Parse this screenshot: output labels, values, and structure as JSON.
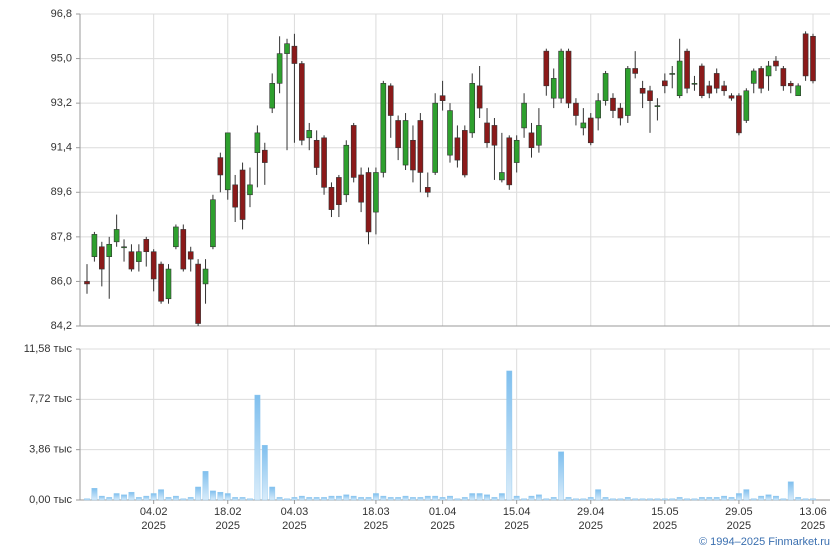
{
  "chart_data": [
    {
      "type": "candlestick",
      "up_color": "#2ea02e",
      "down_color": "#8b1a1a",
      "grid": true,
      "ylim": [
        84.2,
        96.8
      ],
      "yticks": [
        {
          "value": 84.2,
          "label": "84,2"
        },
        {
          "value": 86.0,
          "label": "86,0"
        },
        {
          "value": 87.8,
          "label": "87,8"
        },
        {
          "value": 89.6,
          "label": "89,6"
        },
        {
          "value": 91.4,
          "label": "91,4"
        },
        {
          "value": 93.2,
          "label": "93,2"
        },
        {
          "value": 95.0,
          "label": "95,0"
        },
        {
          "value": 96.8,
          "label": "96,8"
        }
      ],
      "open": [
        86.0,
        87.0,
        87.4,
        87.0,
        87.6,
        87.4,
        87.2,
        86.8,
        87.7,
        87.2,
        86.7,
        85.3,
        87.4,
        88.1,
        87.2,
        86.7,
        85.9,
        87.4,
        91.0,
        89.7,
        89.9,
        90.5,
        89.5,
        91.2,
        91.3,
        93.0,
        94.0,
        95.2,
        95.5,
        94.8,
        91.8,
        91.7,
        91.8,
        89.8,
        90.2,
        89.5,
        92.3,
        90.3,
        90.4,
        88.8,
        90.4,
        93.9,
        92.5,
        90.7,
        91.7,
        92.5,
        89.8,
        90.4,
        93.5,
        91.1,
        91.8,
        92.1,
        92.0,
        93.9,
        92.4,
        92.3,
        90.1,
        91.8,
        90.8,
        92.2,
        92.0,
        91.5,
        95.3,
        93.4,
        93.4,
        95.3,
        93.2,
        92.2,
        92.6,
        92.6,
        93.3,
        93.4,
        93.0,
        92.7,
        94.6,
        93.8,
        93.7,
        93.1,
        94.1,
        94.4,
        93.5,
        95.3,
        94.0,
        94.7,
        93.9,
        94.4,
        93.9,
        93.5,
        93.5,
        92.5,
        94.0,
        94.6,
        94.3,
        94.9,
        94.6,
        94.0,
        93.5,
        96.0,
        95.9
      ],
      "high": [
        86.7,
        88.0,
        87.6,
        87.8,
        88.7,
        87.7,
        87.5,
        87.5,
        87.8,
        87.3,
        86.8,
        86.7,
        88.3,
        88.3,
        87.4,
        86.9,
        86.9,
        89.5,
        91.2,
        92.0,
        90.3,
        90.8,
        90.6,
        92.3,
        91.6,
        94.4,
        95.9,
        95.8,
        96.0,
        94.9,
        92.4,
        92.1,
        91.9,
        90.0,
        90.3,
        91.7,
        92.4,
        90.6,
        90.6,
        90.6,
        94.1,
        94.0,
        92.7,
        92.8,
        92.3,
        92.8,
        90.4,
        93.6,
        94.1,
        93.2,
        92.3,
        92.3,
        94.4,
        94.7,
        93.0,
        92.6,
        92.0,
        91.9,
        91.9,
        93.6,
        92.4,
        93.0,
        95.4,
        94.6,
        95.4,
        95.4,
        93.4,
        93.0,
        92.8,
        93.6,
        94.5,
        93.6,
        93.2,
        94.7,
        95.3,
        94.1,
        93.9,
        93.4,
        94.4,
        94.7,
        95.8,
        95.4,
        94.3,
        94.8,
        94.1,
        94.6,
        94.1,
        93.6,
        93.6,
        93.8,
        94.6,
        94.7,
        94.9,
        95.1,
        94.7,
        94.1,
        94.0,
        96.1,
        96.0
      ],
      "low": [
        85.5,
        86.8,
        85.8,
        85.3,
        87.4,
        86.8,
        86.4,
        86.4,
        86.6,
        85.6,
        85.1,
        85.1,
        87.3,
        86.4,
        86.4,
        84.2,
        85.1,
        87.3,
        89.6,
        89.3,
        88.4,
        88.1,
        89.0,
        89.8,
        89.9,
        92.8,
        93.6,
        91.3,
        91.6,
        91.5,
        91.3,
        90.3,
        89.5,
        88.6,
        88.6,
        89.2,
        90.0,
        88.8,
        87.5,
        87.9,
        90.2,
        91.8,
        90.9,
        90.5,
        90.0,
        89.6,
        89.4,
        90.3,
        92.9,
        90.8,
        90.6,
        90.2,
        91.8,
        92.6,
        91.4,
        90.1,
        90.0,
        89.7,
        90.4,
        91.8,
        91.0,
        91.2,
        93.5,
        93.0,
        93.2,
        93.0,
        92.3,
        91.9,
        91.5,
        92.1,
        93.1,
        92.6,
        92.3,
        92.4,
        94.2,
        93.0,
        92.0,
        92.5,
        93.6,
        93.8,
        93.4,
        93.6,
        93.7,
        93.4,
        93.4,
        93.6,
        93.5,
        93.3,
        91.9,
        92.4,
        93.6,
        93.6,
        93.7,
        94.5,
        93.7,
        93.6,
        93.5,
        94.1,
        94.0
      ],
      "close": [
        85.9,
        87.9,
        86.5,
        87.5,
        88.1,
        87.4,
        86.5,
        87.2,
        87.2,
        86.1,
        85.2,
        86.5,
        88.2,
        86.5,
        86.9,
        84.3,
        86.5,
        89.3,
        90.3,
        92.0,
        89.0,
        88.5,
        89.9,
        92.0,
        90.8,
        94.0,
        95.2,
        95.6,
        94.8,
        91.7,
        92.1,
        90.6,
        89.8,
        88.9,
        89.1,
        91.5,
        90.2,
        89.2,
        88.0,
        90.4,
        94.0,
        92.7,
        91.4,
        92.5,
        90.5,
        90.4,
        89.6,
        93.2,
        93.3,
        92.9,
        90.9,
        90.3,
        94.0,
        93.0,
        91.6,
        91.5,
        90.4,
        89.9,
        91.7,
        93.2,
        91.4,
        92.3,
        93.9,
        94.2,
        95.3,
        93.2,
        92.7,
        92.4,
        91.6,
        93.3,
        94.4,
        92.9,
        92.6,
        94.6,
        94.4,
        93.6,
        93.3,
        93.1,
        93.9,
        94.4,
        94.9,
        93.8,
        94.0,
        93.5,
        93.6,
        93.8,
        93.7,
        93.4,
        92.0,
        93.7,
        94.5,
        93.8,
        94.7,
        94.7,
        93.9,
        93.9,
        93.9,
        94.3,
        94.1
      ]
    },
    {
      "type": "bar",
      "color": "#8cc6ee",
      "grid": true,
      "ylim": [
        0,
        11.58
      ],
      "yticks": [
        {
          "value": 0,
          "label": "0,00 тыс"
        },
        {
          "value": 3.86,
          "label": "3,86 тыс"
        },
        {
          "value": 7.72,
          "label": "7,72 тыс"
        },
        {
          "value": 11.58,
          "label": "11,58 тыс"
        }
      ],
      "categories": [
        null,
        null,
        null,
        null,
        null,
        null,
        null,
        null,
        null,
        "04.02",
        null,
        null,
        null,
        null,
        null,
        null,
        null,
        null,
        null,
        "18.02",
        null,
        null,
        null,
        null,
        null,
        null,
        null,
        null,
        "04.03",
        null,
        null,
        null,
        null,
        null,
        null,
        null,
        null,
        null,
        null,
        "18.03",
        null,
        null,
        null,
        null,
        null,
        null,
        null,
        null,
        "01.04",
        null,
        null,
        null,
        null,
        null,
        null,
        null,
        null,
        null,
        "15.04",
        null,
        null,
        null,
        null,
        null,
        null,
        null,
        null,
        null,
        "29.04",
        null,
        null,
        null,
        null,
        null,
        null,
        null,
        null,
        null,
        "15.05",
        null,
        null,
        null,
        null,
        null,
        null,
        null,
        null,
        null,
        "29.05",
        null,
        null,
        null,
        null,
        null,
        null,
        null,
        null,
        null,
        "13.06"
      ],
      "category_years": [
        null,
        null,
        null,
        null,
        null,
        null,
        null,
        null,
        null,
        "2025",
        null,
        null,
        null,
        null,
        null,
        null,
        null,
        null,
        null,
        "2025",
        null,
        null,
        null,
        null,
        null,
        null,
        null,
        null,
        "2025",
        null,
        null,
        null,
        null,
        null,
        null,
        null,
        null,
        null,
        null,
        "2025",
        null,
        null,
        null,
        null,
        null,
        null,
        null,
        null,
        "2025",
        null,
        null,
        null,
        null,
        null,
        null,
        null,
        null,
        null,
        "2025",
        null,
        null,
        null,
        null,
        null,
        null,
        null,
        null,
        null,
        "2025",
        null,
        null,
        null,
        null,
        null,
        null,
        null,
        null,
        null,
        "2025",
        null,
        null,
        null,
        null,
        null,
        null,
        null,
        null,
        null,
        "2025",
        null,
        null,
        null,
        null,
        null,
        null,
        null,
        null,
        null,
        "2025"
      ],
      "values": [
        0.1,
        0.9,
        0.3,
        0.2,
        0.5,
        0.4,
        0.6,
        0.2,
        0.3,
        0.5,
        0.8,
        0.2,
        0.3,
        0.1,
        0.2,
        1.0,
        2.2,
        0.7,
        0.6,
        0.5,
        0.2,
        0.2,
        0.1,
        8.05,
        4.2,
        1.0,
        0.2,
        0.1,
        0.2,
        0.3,
        0.2,
        0.2,
        0.2,
        0.3,
        0.3,
        0.4,
        0.3,
        0.2,
        0.2,
        0.5,
        0.3,
        0.2,
        0.2,
        0.3,
        0.2,
        0.2,
        0.3,
        0.3,
        0.2,
        0.3,
        0.1,
        0.2,
        0.5,
        0.5,
        0.4,
        0.2,
        0.5,
        9.9,
        0.3,
        0.1,
        0.3,
        0.4,
        0.1,
        0.2,
        3.7,
        0.2,
        0.1,
        0.1,
        0.2,
        0.8,
        0.2,
        0.1,
        0.1,
        0.2,
        0.1,
        0.1,
        0.1,
        0.1,
        0.1,
        0.1,
        0.2,
        0.1,
        0.1,
        0.2,
        0.2,
        0.2,
        0.3,
        0.2,
        0.5,
        0.8,
        0.1,
        0.3,
        0.4,
        0.3,
        0.1,
        1.4,
        0.2,
        0.1,
        0.1
      ]
    }
  ],
  "footer": "© 1994–2025 Finmarket.ru"
}
